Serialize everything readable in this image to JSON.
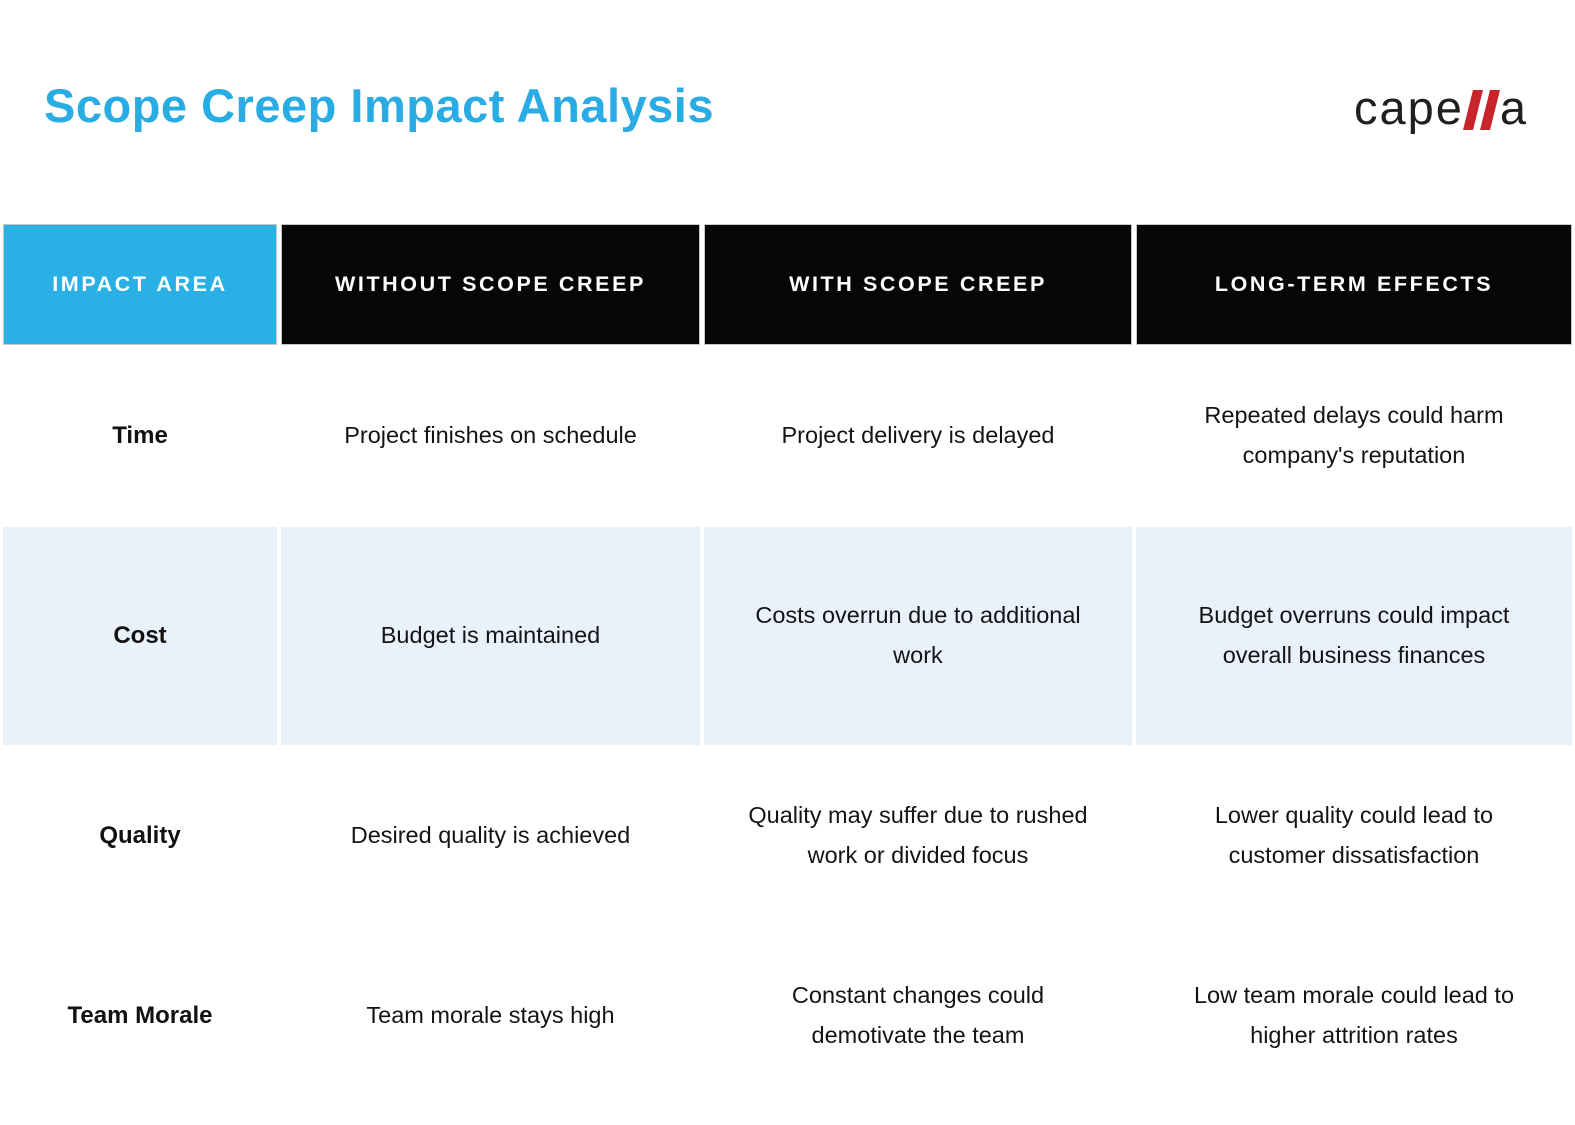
{
  "title": "Scope Creep Impact Analysis",
  "logo": {
    "name": "capella",
    "text_left": "cape",
    "text_right": "a"
  },
  "colors": {
    "title_blue": "#29ACE3",
    "header_blue": "#2BB0E6",
    "header_black": "#060606",
    "highlight_row": "#E9F1FB",
    "logo_red": "#C9242B"
  },
  "table": {
    "columns": [
      "IMPACT AREA",
      "WITHOUT SCOPE CREEP",
      "WITH SCOPE CREEP",
      "LONG-TERM EFFECTS"
    ],
    "rows": [
      {
        "area": "Time",
        "without": "Project finishes on schedule",
        "with": "Project delivery is delayed",
        "long_term": "Repeated delays could harm\ncompany's reputation"
      },
      {
        "area": "Cost",
        "without": "Budget is maintained",
        "with": "Costs overrun due to additional\nwork",
        "long_term": "Budget overruns could impact\noverall business finances"
      },
      {
        "area": "Quality",
        "without": "Desired quality is achieved",
        "with": "Quality may suffer due to rushed\nwork or divided focus",
        "long_term": "Lower quality could lead to\ncustomer dissatisfaction"
      },
      {
        "area": "Team Morale",
        "without": "Team morale stays high",
        "with": "Constant changes could\ndemotivate the team",
        "long_term": "Low team morale could lead to\nhigher attrition rates"
      }
    ]
  }
}
